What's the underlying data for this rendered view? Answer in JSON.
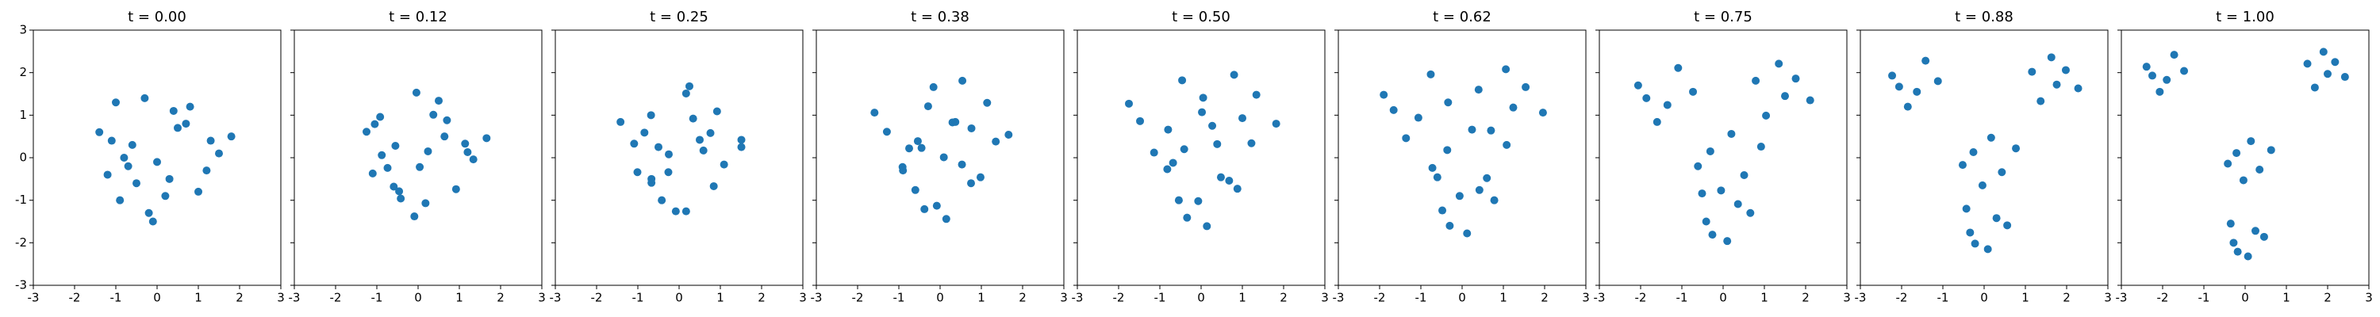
{
  "chart_data": [
    {
      "type": "scatter",
      "title": "t = 0.00",
      "color": "#1f77b4",
      "xlim": [
        -3,
        3
      ],
      "ylim": [
        -3,
        3
      ],
      "xticks": [
        -3,
        -2,
        -1,
        0,
        1,
        2,
        3
      ],
      "yticks": [
        -3,
        -2,
        -1,
        0,
        1,
        2,
        3
      ],
      "x": [
        0.3,
        -1.1,
        0.8,
        -0.2,
        1.5,
        -0.7,
        0.5,
        -0.9,
        1.2,
        -0.3,
        0,
        -1.4,
        -0.6,
        1,
        -1.2,
        0.4,
        1.8,
        -0.1,
        0.7,
        -0.5,
        1.3,
        -1,
        0.2,
        -0.8
      ],
      "y": [
        -0.5,
        0.4,
        1.2,
        -1.3,
        0.1,
        -0.2,
        0.7,
        -1,
        -0.3,
        1.4,
        -0.1,
        0.6,
        0.3,
        -0.8,
        -0.4,
        1.1,
        0.5,
        -1.5,
        0.8,
        -0.6,
        0.4,
        1.3,
        -0.9,
        0
      ]
    },
    {
      "type": "scatter",
      "title": "t = 0.12",
      "color": "#1f77b4",
      "xlim": [
        -3,
        3
      ],
      "ylim": [
        -3,
        3
      ],
      "xticks": [
        -3,
        -2,
        -1,
        0,
        1,
        2,
        3
      ],
      "x": [
        0.04,
        -1.25,
        0.5,
        -0.42,
        1.14,
        -0.88,
        0.7,
        -0.59,
        1.34,
        -0.04,
        0.24,
        -1.05,
        -0.55,
        0.92,
        -1.1,
        0.37,
        1.66,
        -0.09,
        0.64,
        -0.46,
        1.2,
        -0.92,
        0.18,
        -0.74
      ],
      "y": [
        -0.22,
        0.61,
        1.34,
        -0.96,
        0.33,
        0.06,
        0.88,
        -0.68,
        -0.04,
        1.53,
        0.15,
        0.79,
        0.28,
        -0.74,
        -0.37,
        1.01,
        0.46,
        -1.38,
        0.5,
        -0.79,
        0.13,
        0.96,
        -1.07,
        -0.24
      ]
    },
    {
      "type": "scatter",
      "title": "t = 0.25",
      "color": "#1f77b4",
      "xlim": [
        -3,
        3
      ],
      "ylim": [
        -3,
        3
      ],
      "xticks": [
        -3,
        -2,
        -1,
        0,
        1,
        2,
        3
      ],
      "x": [
        -0.25,
        -1.42,
        0.17,
        -0.67,
        0.76,
        -1.09,
        0.92,
        -0.26,
        1.51,
        0.25,
        0.5,
        -0.68,
        -0.5,
        0.84,
        -1.01,
        0.34,
        1.51,
        -0.08,
        0.59,
        -0.42,
        1.09,
        -0.84,
        0.17,
        -0.67
      ],
      "y": [
        0.08,
        0.84,
        1.51,
        -0.59,
        0.58,
        0.33,
        1.09,
        -0.34,
        0.25,
        1.68,
        0.42,
        1,
        0.25,
        -0.67,
        -0.34,
        0.92,
        0.42,
        -1.26,
        0.17,
        -1,
        -0.16,
        0.59,
        -1.26,
        -0.5
      ]
    },
    {
      "type": "scatter",
      "title": "t = 0.38",
      "color": "#1f77b4",
      "xlim": [
        -3,
        3
      ],
      "ylim": [
        -3,
        3
      ],
      "xticks": [
        -3,
        -2,
        -1,
        0,
        1,
        2,
        3
      ],
      "x": [
        -0.54,
        -1.59,
        -0.16,
        -0.91,
        0.37,
        -1.29,
        1.14,
        0.09,
        1.66,
        0.54,
        0.76,
        -0.29,
        -0.45,
        0.75,
        -0.9,
        0.3,
        1.35,
        -0.08,
        0.53,
        -0.38,
        0.98,
        -0.75,
        0.15,
        -0.6
      ],
      "y": [
        0.39,
        1.06,
        1.66,
        -0.22,
        0.84,
        0.61,
        1.29,
        0.01,
        0.54,
        1.81,
        0.69,
        1.21,
        0.23,
        -0.6,
        -0.3,
        0.83,
        0.38,
        -1.13,
        -0.16,
        -1.21,
        -0.46,
        0.22,
        -1.44,
        -0.76
      ]
    },
    {
      "type": "scatter",
      "title": "t = 0.50",
      "color": "#1f77b4",
      "xlim": [
        -3,
        3
      ],
      "ylim": [
        -3,
        3
      ],
      "xticks": [
        -3,
        -2,
        -1,
        0,
        1,
        2,
        3
      ],
      "x": [
        -0.8,
        -1.75,
        -0.46,
        -1.14,
        0.02,
        -1.48,
        1.34,
        0.39,
        1.82,
        0.8,
        1,
        0.05,
        -0.41,
        0.68,
        -0.82,
        0.27,
        1.22,
        -0.07,
        0.48,
        -0.34,
        0.88,
        -0.68,
        0.14,
        -0.54
      ],
      "y": [
        0.66,
        1.27,
        1.82,
        0.12,
        1.07,
        0.86,
        1.48,
        0.32,
        0.8,
        1.95,
        0.93,
        1.41,
        0.2,
        -0.54,
        -0.27,
        0.75,
        0.34,
        -1.02,
        -0.46,
        -1.41,
        -0.73,
        -0.12,
        -1.61,
        -1
      ]
    },
    {
      "type": "scatter",
      "title": "t = 0.62",
      "color": "#1f77b4",
      "xlim": [
        -3,
        3
      ],
      "ylim": [
        -3,
        3
      ],
      "xticks": [
        -3,
        -2,
        -1,
        0,
        1,
        2,
        3
      ],
      "x": [
        -1.06,
        -1.9,
        -0.76,
        -1.36,
        -0.34,
        -1.66,
        1.54,
        0.7,
        1.96,
        1.06,
        1.24,
        0.4,
        -0.36,
        0.6,
        -0.72,
        0.24,
        1.08,
        -0.06,
        0.42,
        -0.3,
        0.78,
        -0.6,
        0.12,
        -0.48
      ],
      "y": [
        0.94,
        1.48,
        1.96,
        0.46,
        1.3,
        1.12,
        1.66,
        0.64,
        1.06,
        2.08,
        1.18,
        1.6,
        0.18,
        -0.48,
        -0.24,
        0.66,
        0.3,
        -0.9,
        -0.76,
        -1.6,
        -1,
        -0.46,
        -1.78,
        -1.24
      ]
    },
    {
      "type": "scatter",
      "title": "t = 0.75",
      "color": "#1f77b4",
      "xlim": [
        -3,
        3
      ],
      "ylim": [
        -3,
        3
      ],
      "xticks": [
        -3,
        -2,
        -1,
        0,
        1,
        2,
        3
      ],
      "x": [
        -1.35,
        -2.06,
        -1.09,
        -1.6,
        -0.73,
        -1.86,
        1.76,
        1.04,
        2.11,
        1.35,
        1.5,
        0.79,
        -0.31,
        0.51,
        -0.61,
        0.2,
        0.92,
        -0.05,
        0.36,
        -0.26,
        0.66,
        -0.51,
        0.1,
        -0.41
      ],
      "y": [
        1.24,
        1.7,
        2.11,
        0.84,
        1.55,
        1.4,
        1.86,
        0.99,
        1.35,
        2.21,
        1.45,
        1.81,
        0.15,
        -0.41,
        -0.2,
        0.56,
        0.26,
        -0.77,
        -1.09,
        -1.81,
        -1.3,
        -0.84,
        -1.96,
        -1.5
      ]
    },
    {
      "type": "scatter",
      "title": "t = 0.88",
      "color": "#1f77b4",
      "xlim": [
        -3,
        3
      ],
      "ylim": [
        -3,
        3
      ],
      "xticks": [
        -3,
        -2,
        -1,
        0,
        1,
        2,
        3
      ],
      "x": [
        -1.63,
        -2.23,
        -1.42,
        -1.85,
        -1.12,
        -2.06,
        1.98,
        1.37,
        2.28,
        1.63,
        1.76,
        1.16,
        -0.26,
        0.43,
        -0.52,
        0.17,
        0.77,
        -0.04,
        0.3,
        -0.22,
        0.56,
        -0.43,
        0.09,
        -0.34
      ],
      "y": [
        1.55,
        1.93,
        2.28,
        1.2,
        1.8,
        1.67,
        2.06,
        1.33,
        1.63,
        2.36,
        1.72,
        2.02,
        0.13,
        -0.34,
        -0.17,
        0.47,
        0.22,
        -0.65,
        -1.42,
        -2.02,
        -1.59,
        -1.2,
        -2.15,
        -1.76
      ]
    },
    {
      "type": "scatter",
      "title": "t = 1.00",
      "color": "#1f77b4",
      "xlim": [
        -3,
        3
      ],
      "ylim": [
        -3,
        3
      ],
      "xticks": [
        -3,
        -2,
        -1,
        0,
        1,
        2,
        3
      ],
      "x": [
        -1.9,
        -2.39,
        -1.72,
        -2.07,
        -1.48,
        -2.25,
        2.18,
        1.69,
        2.42,
        1.9,
        2,
        1.51,
        -0.21,
        0.35,
        -0.42,
        0.14,
        0.63,
        -0.04,
        0.25,
        -0.18,
        0.46,
        -0.35,
        0.07,
        -0.28
      ],
      "y": [
        1.83,
        2.14,
        2.42,
        1.55,
        2.04,
        1.93,
        2.25,
        1.65,
        1.9,
        2.49,
        1.97,
        2.21,
        0.11,
        -0.28,
        -0.14,
        0.39,
        0.18,
        -0.53,
        -1.72,
        -2.21,
        -1.86,
        -1.55,
        -2.32,
        -2
      ]
    }
  ]
}
